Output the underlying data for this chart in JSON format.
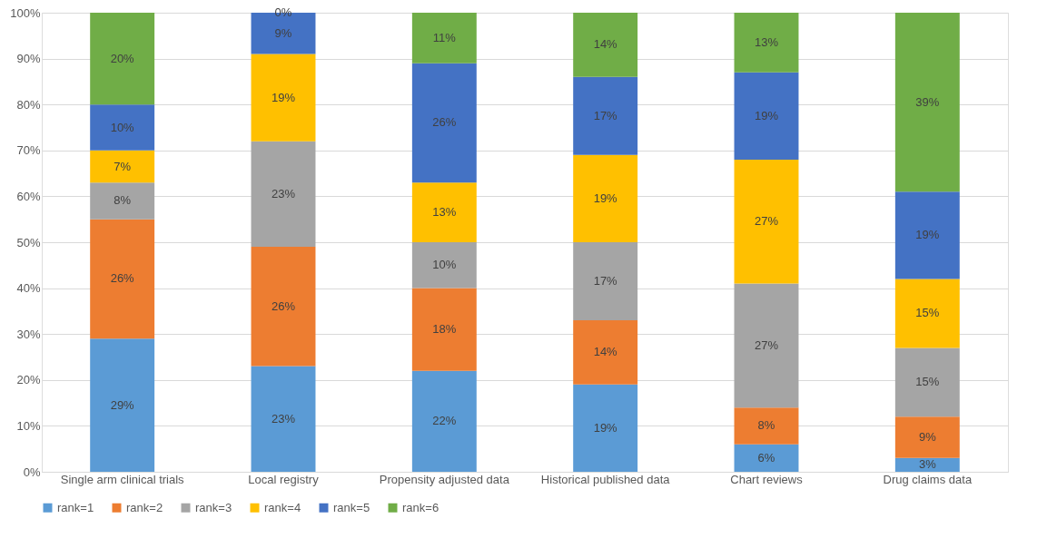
{
  "chart_data": {
    "type": "bar",
    "stacked": true,
    "categories": [
      "Single arm clinical trials",
      "Local registry",
      "Propensity adjusted data",
      "Historical published data",
      "Chart reviews",
      "Drug claims data"
    ],
    "series": [
      {
        "name": "rank=1",
        "color": "#5b9bd5",
        "values": [
          29,
          23,
          22,
          19,
          6,
          3
        ],
        "value_labels": [
          "29%",
          "23%",
          "22%",
          "19%",
          "6%",
          "3%"
        ]
      },
      {
        "name": "rank=2",
        "color": "#ed7d31",
        "values": [
          26,
          26,
          18,
          14,
          8,
          9
        ],
        "value_labels": [
          "26%",
          "26%",
          "18%",
          "14%",
          "8%",
          "9%"
        ]
      },
      {
        "name": "rank=3",
        "color": "#a5a5a5",
        "values": [
          8,
          23,
          10,
          17,
          27,
          15
        ],
        "value_labels": [
          "8%",
          "23%",
          "10%",
          "17%",
          "27%",
          "15%"
        ]
      },
      {
        "name": "rank=4",
        "color": "#ffc000",
        "values": [
          7,
          19,
          13,
          19,
          27,
          15
        ],
        "value_labels": [
          "7%",
          "19%",
          "13%",
          "19%",
          "27%",
          "15%"
        ]
      },
      {
        "name": "rank=5",
        "color": "#4472c4",
        "values": [
          10,
          9,
          26,
          17,
          19,
          19
        ],
        "value_labels": [
          "10%",
          "9%",
          "26%",
          "17%",
          "19%",
          "19%"
        ]
      },
      {
        "name": "rank=6",
        "color": "#70ad47",
        "values": [
          20,
          0,
          11,
          14,
          13,
          39
        ],
        "value_labels": [
          "20%",
          "0%",
          "11%",
          "14%",
          "13%",
          "39%"
        ]
      }
    ],
    "ylim": [
      0,
      100
    ],
    "yticks": [
      {
        "value": 0,
        "label": "0%"
      },
      {
        "value": 10,
        "label": "10%"
      },
      {
        "value": 20,
        "label": "20%"
      },
      {
        "value": 30,
        "label": "30%"
      },
      {
        "value": 40,
        "label": "40%"
      },
      {
        "value": 50,
        "label": "50%"
      },
      {
        "value": 60,
        "label": "60%"
      },
      {
        "value": 70,
        "label": "70%"
      },
      {
        "value": 80,
        "label": "80%"
      },
      {
        "value": 90,
        "label": "90%"
      },
      {
        "value": 100,
        "label": "100%"
      }
    ],
    "grid": "y",
    "legend": "bottom"
  }
}
